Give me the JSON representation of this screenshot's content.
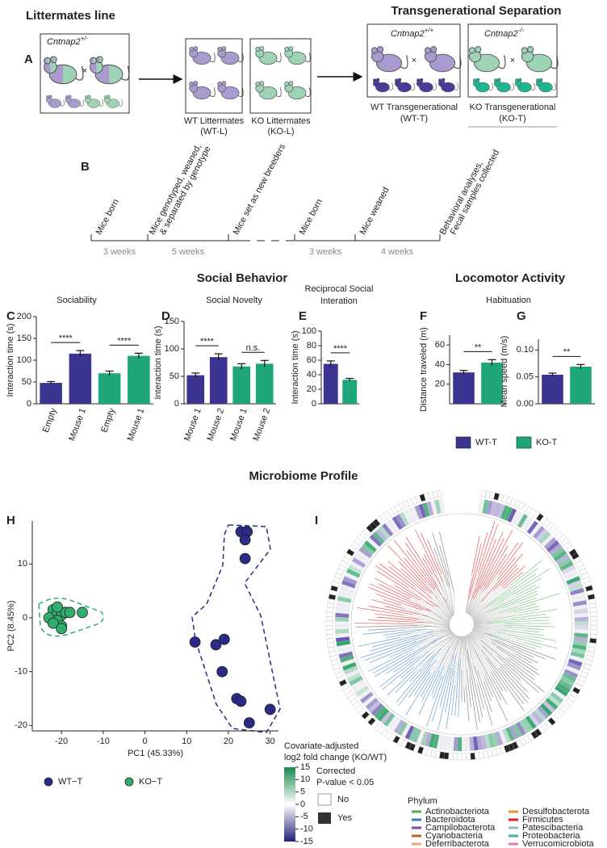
{
  "panel_a": {
    "letter": "A",
    "left_title": "Littermates line",
    "right_title": "Transgenerational Separation",
    "parent_genotype": {
      "gene": "Cntnap2",
      "genotype": "+/-"
    },
    "wt_genotype": {
      "gene": "Cntnap2",
      "genotype": "+/+"
    },
    "ko_genotype": {
      "gene": "Cntnap2",
      "genotype": "-/-"
    },
    "wt_l": [
      "WT Littermates",
      "(WT-L)"
    ],
    "ko_l": [
      "KO Littermates",
      "(KO-L)"
    ],
    "wt_t": [
      "WT Transgenerational",
      "(WT-T)"
    ],
    "ko_t": [
      "KO Transgenerational",
      "(KO-T)"
    ],
    "cross": "×"
  },
  "panel_b": {
    "letter": "B",
    "events": [
      "Mice born",
      "Mice genotyped, weaned,",
      "& separated by genotype",
      "Mice set as new breeders",
      "Mice born",
      "Mice weaned",
      "Behavioral analyses,",
      "Fecal samples collected"
    ],
    "durations": [
      "3 weeks",
      "5 weeks",
      "3 weeks",
      "4 weeks"
    ]
  },
  "headings": {
    "social": "Social Behavior",
    "locomotor": "Locomotor Activity",
    "microbiome": "Microbiome Profile"
  },
  "group_legend": [
    {
      "name": "WT-T",
      "color": "#3b3591"
    },
    {
      "name": "KO-T",
      "color": "#1fa57a"
    }
  ],
  "chart_data": [
    {
      "type": "bar",
      "panel": "C",
      "title": [
        "Sociability"
      ],
      "ylabel": "Interaction time (s)",
      "categories": [
        "Empty",
        "Mouse 1",
        "Empty",
        "Mouse 1"
      ],
      "values": [
        48,
        115,
        70,
        110
      ],
      "errors": [
        3,
        7,
        5,
        6
      ],
      "colors": [
        "#3b3591",
        "#3b3591",
        "#1fa57a",
        "#1fa57a"
      ],
      "significance": [
        "****",
        "****"
      ],
      "ylim": [
        0,
        200
      ],
      "yticks": [
        0,
        50,
        100,
        150,
        200
      ]
    },
    {
      "type": "bar",
      "panel": "D",
      "title": [
        "Social Novelty"
      ],
      "ylabel": "Interaction time (s)",
      "categories": [
        "Mouse 1",
        "Mouse 2",
        "Mouse 1",
        "Mouse 2"
      ],
      "values": [
        52,
        85,
        68,
        73
      ],
      "errors": [
        4,
        6,
        5,
        6
      ],
      "colors": [
        "#3b3591",
        "#3b3591",
        "#1fa57a",
        "#1fa57a"
      ],
      "significance": [
        "****",
        "n.s."
      ],
      "ylim": [
        0,
        150
      ],
      "yticks": [
        0,
        50,
        100,
        150
      ]
    },
    {
      "type": "bar",
      "panel": "E",
      "title": [
        "Reciprocal Social",
        "Interation"
      ],
      "ylabel": "Interaction time (s)",
      "categories": [
        null,
        null
      ],
      "values": [
        55,
        33
      ],
      "errors": [
        4,
        2
      ],
      "colors": [
        "#3b3591",
        "#1fa57a"
      ],
      "significance": [
        "****"
      ],
      "ylim": [
        0,
        100
      ],
      "yticks": [
        0,
        20,
        40,
        60,
        80,
        100
      ]
    },
    {
      "type": "bar",
      "panel": "F",
      "title": [
        "Habituation"
      ],
      "ylabel": "Distance traveled (m)",
      "categories": [
        null,
        null
      ],
      "values": [
        32,
        42
      ],
      "errors": [
        2,
        3
      ],
      "colors": [
        "#3b3591",
        "#1fa57a"
      ],
      "significance": [
        "**"
      ],
      "ylim": [
        0,
        70
      ],
      "yticks": [
        20,
        40,
        60
      ]
    },
    {
      "type": "bar",
      "panel": "G",
      "title": [],
      "ylabel": "Mean speed (m/s)",
      "categories": [
        null,
        null
      ],
      "values": [
        0.054,
        0.069
      ],
      "errors": [
        0.003,
        0.004
      ],
      "colors": [
        "#3b3591",
        "#1fa57a"
      ],
      "significance": [
        "**"
      ],
      "ylim": [
        0,
        0.12
      ],
      "yticks": [
        {
          "value": 0,
          "label": "0.00"
        },
        0.05,
        {
          "value": 0.1,
          "label": "0.10"
        }
      ]
    },
    {
      "type": "scatter",
      "panel": "H",
      "xlabel": "PC1 (45.33%)",
      "ylabel": "PC2 (8.45%)",
      "xlim": [
        -27,
        32
      ],
      "xticks": [
        -20,
        -10,
        0,
        10,
        20,
        30
      ],
      "ylim": [
        -21,
        18
      ],
      "yticks": [
        -20,
        -10,
        0,
        10
      ],
      "series": [
        {
          "name": "WT−T",
          "color": "#2b2a86",
          "x": [
            23,
            24.5,
            24,
            24,
            12,
            17,
            18.5,
            22,
            23,
            25,
            30,
            19
          ],
          "y": [
            16,
            16,
            14.5,
            11,
            -4.5,
            -5,
            -10,
            -15,
            -15.5,
            -19.5,
            -17,
            -4
          ]
        },
        {
          "name": "KO−T",
          "color": "#2fae6e",
          "x": [
            -22,
            -21,
            -20,
            -23,
            -21,
            -20,
            -19,
            -18,
            -15,
            -22,
            -21,
            -20
          ],
          "y": [
            1.5,
            1,
            0.5,
            0,
            -0.5,
            -1.5,
            1,
            1,
            1,
            -1,
            2,
            -2
          ]
        }
      ]
    }
  ],
  "panel_i": {
    "letter": "I",
    "colorbar": {
      "title": [
        "Covariate-adjusted",
        "log2 fold change (KO/WT)"
      ],
      "ticks": [
        15,
        10,
        5,
        0,
        -5,
        -10,
        -15
      ]
    },
    "pvalue": {
      "title": [
        "Corrected",
        "P-value < 0.05"
      ],
      "levels": [
        "No",
        "Yes"
      ]
    },
    "phylum": {
      "title": "Phylum",
      "items": [
        {
          "name": "Actinobacteriota",
          "color": "#4caf50"
        },
        {
          "name": "Bacteroidota",
          "color": "#2f7fc1"
        },
        {
          "name": "Campilobacterota",
          "color": "#7b4fa0"
        },
        {
          "name": "Cyanobacteria",
          "color": "#b5651d"
        },
        {
          "name": "Deferribacterota",
          "color": "#f4a582"
        },
        {
          "name": "Desulfobacterota",
          "color": "#f28e2b"
        },
        {
          "name": "Firmicutes",
          "color": "#e41a1c"
        },
        {
          "name": "Patescibacteria",
          "color": "#9fb3c8"
        },
        {
          "name": "Proteobacteria",
          "color": "#3cb8a0"
        },
        {
          "name": "Verrucomicrobiota",
          "color": "#e377c2"
        }
      ]
    }
  }
}
